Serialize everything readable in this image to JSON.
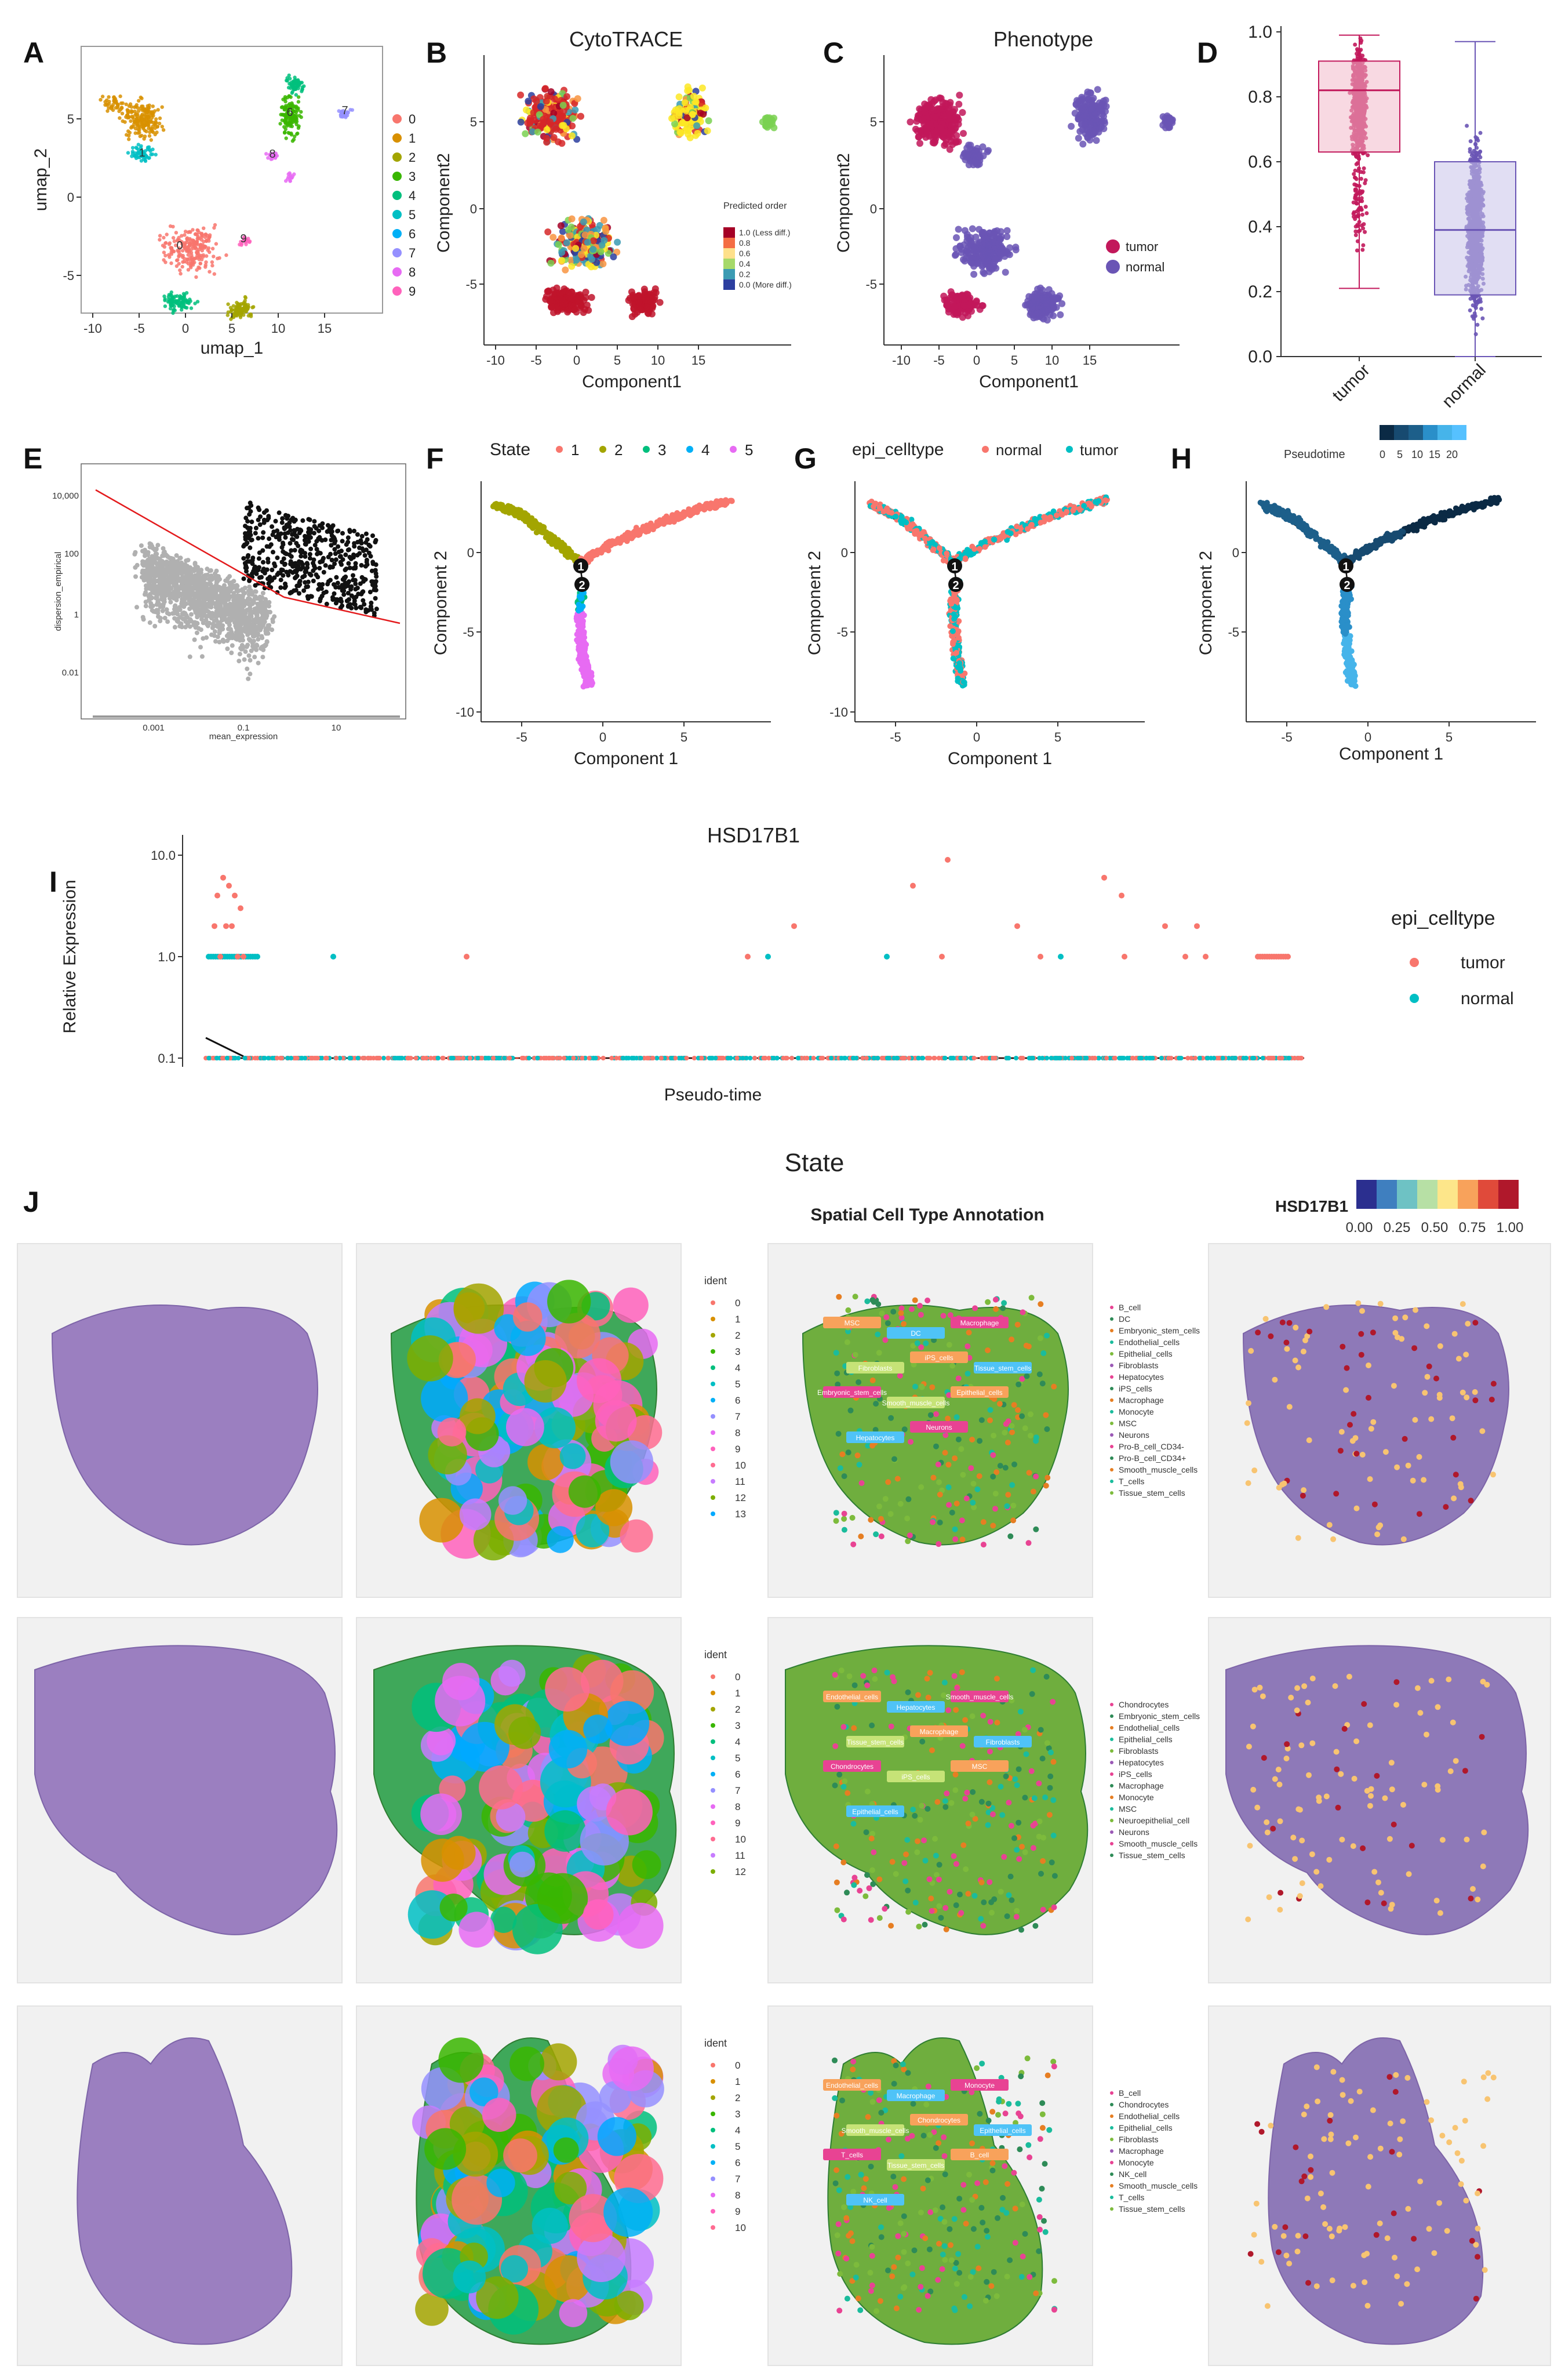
{
  "panel_labels": [
    "A",
    "B",
    "C",
    "D",
    "E",
    "F",
    "G",
    "H",
    "I",
    "J"
  ],
  "colors": {
    "tumor": "#f8766d",
    "normal": "#00bfc4",
    "tumor_box": "#c2185b",
    "normal_box": "#6a55b5",
    "state1": "#f8766d",
    "state2": "#a3a500",
    "state3": "#00bf7d",
    "state4": "#00b0f6",
    "state5": "#e76bf3"
  },
  "chart_data": [
    {
      "panel": "A",
      "type": "scatter",
      "xlabel": "umap_1",
      "ylabel": "umap_2",
      "xticks": [
        "-10",
        "-5",
        "0",
        "5",
        "10",
        "15"
      ],
      "yticks": [
        "5",
        "0",
        "-5"
      ],
      "legend": [
        "0",
        "1",
        "2",
        "3",
        "4",
        "5",
        "6",
        "7",
        "8",
        "9"
      ],
      "cluster_labels": [
        "0",
        "1",
        "2",
        "3",
        "4",
        "5",
        "6",
        "7",
        "8",
        "9"
      ]
    },
    {
      "panel": "B",
      "type": "scatter",
      "title": "CytoTRACE",
      "xlabel": "Component1",
      "ylabel": "Component2",
      "xticks": [
        "-10",
        "-5",
        "0",
        "5",
        "10",
        "15"
      ],
      "yticks": [
        "5",
        "0",
        "-5"
      ],
      "legend_title": "Predicted order",
      "legend": [
        "1.0 (Less diff.)",
        "0.8",
        "0.6",
        "0.4",
        "0.2",
        "0.0 (More diff.)"
      ]
    },
    {
      "panel": "C",
      "type": "scatter",
      "title": "Phenotype",
      "xlabel": "Component1",
      "ylabel": "Component2",
      "xticks": [
        "-10",
        "-5",
        "0",
        "5",
        "10",
        "15"
      ],
      "yticks": [
        "5",
        "0",
        "-5"
      ],
      "legend": [
        "tumor",
        "normal"
      ]
    },
    {
      "panel": "D",
      "type": "box",
      "categories": [
        "tumor",
        "normal"
      ],
      "yticks": [
        "0.0",
        "0.2",
        "0.4",
        "0.6",
        "0.8",
        "1.0"
      ],
      "ylim": [
        0,
        1
      ],
      "boxes": [
        {
          "name": "tumor",
          "q1": 0.63,
          "median": 0.82,
          "q3": 0.91,
          "lo": 0.21,
          "hi": 0.99
        },
        {
          "name": "normal",
          "q1": 0.19,
          "median": 0.39,
          "q3": 0.6,
          "lo": 0.0,
          "hi": 0.97
        }
      ]
    },
    {
      "panel": "E",
      "type": "scatter",
      "xlabel": "mean_expression",
      "ylabel": "dispersion_empirical",
      "xticks": [
        "0.001",
        "0.1",
        "10"
      ],
      "yticks": [
        "10,000",
        "100",
        "1",
        "0.01"
      ]
    },
    {
      "panel": "F",
      "type": "trajectory",
      "legend_title": "State",
      "legend": [
        "1",
        "2",
        "3",
        "4",
        "5"
      ],
      "xlabel": "Component 1",
      "ylabel": "Component 2",
      "xticks": [
        "-5",
        "0",
        "5"
      ],
      "yticks": [
        "0",
        "-5",
        "-10"
      ],
      "nodes": [
        "1",
        "2"
      ]
    },
    {
      "panel": "G",
      "type": "trajectory",
      "legend_title": "epi_celltype",
      "legend": [
        "normal",
        "tumor"
      ],
      "xlabel": "Component 1",
      "ylabel": "Component 2",
      "xticks": [
        "-5",
        "0",
        "5"
      ],
      "yticks": [
        "0",
        "-5",
        "-10"
      ],
      "nodes": [
        "1",
        "2"
      ]
    },
    {
      "panel": "H",
      "type": "trajectory",
      "legend_title": "Pseudotime",
      "legend": [
        "0",
        "5",
        "10",
        "15",
        "20"
      ],
      "xlabel": "Component 1",
      "ylabel": "Component 2",
      "xticks": [
        "-5",
        "0",
        "5"
      ],
      "yticks": [
        "0",
        "-5"
      ],
      "nodes": [
        "1",
        "2"
      ]
    },
    {
      "panel": "I",
      "type": "scatter",
      "title": "HSD17B1",
      "xlabel": "Pseudo-time",
      "ylabel": "Relative Expression",
      "yticks": [
        "10.0",
        "1.0",
        "0.1"
      ],
      "legend_title": "epi_celltype",
      "legend": [
        "tumor",
        "normal"
      ]
    }
  ],
  "panel_j": {
    "title": "State",
    "annotation_title": "Spatial Cell Type Annotation",
    "colorbar_title": "HSD17B1",
    "colorbar_ticks": [
      "0.00",
      "0.25",
      "0.50",
      "0.75",
      "1.00"
    ],
    "ident_title": "ident",
    "rows": [
      {
        "idents": [
          "0",
          "1",
          "2",
          "3",
          "4",
          "5",
          "6",
          "7",
          "8",
          "9",
          "10",
          "11",
          "12",
          "13"
        ],
        "celltypes": [
          "B_cell",
          "DC",
          "Embryonic_stem_cells",
          "Endothelial_cells",
          "Epithelial_cells",
          "Fibroblasts",
          "Hepatocytes",
          "iPS_cells",
          "Macrophage",
          "Monocyte",
          "MSC",
          "Neurons",
          "Pro-B_cell_CD34-",
          "Pro-B_cell_CD34+",
          "Smooth_muscle_cells",
          "T_cells",
          "Tissue_stem_cells"
        ],
        "map_labels": [
          "MSC",
          "DC",
          "Macrophage",
          "Fibroblasts",
          "iPS_cells",
          "Tissue_stem_cells",
          "Embryonic_stem_cells",
          "Smooth_muscle_cells",
          "Epithelial_cells",
          "Hepatocytes",
          "Neurons"
        ]
      },
      {
        "idents": [
          "0",
          "1",
          "2",
          "3",
          "4",
          "5",
          "6",
          "7",
          "8",
          "9",
          "10",
          "11",
          "12"
        ],
        "celltypes": [
          "Chondrocytes",
          "Embryonic_stem_cells",
          "Endothelial_cells",
          "Epithelial_cells",
          "Fibroblasts",
          "Hepatocytes",
          "iPS_cells",
          "Macrophage",
          "Monocyte",
          "MSC",
          "Neuroepithelial_cell",
          "Neurons",
          "Smooth_muscle_cells",
          "Tissue_stem_cells"
        ],
        "map_labels": [
          "Endothelial_cells",
          "Hepatocytes",
          "Smooth_muscle_cells",
          "Tissue_stem_cells",
          "Macrophage",
          "Fibroblasts",
          "Chondrocytes",
          "iPS_cells",
          "MSC",
          "Epithelial_cells"
        ]
      },
      {
        "idents": [
          "0",
          "1",
          "2",
          "3",
          "4",
          "5",
          "6",
          "7",
          "8",
          "9",
          "10"
        ],
        "celltypes": [
          "B_cell",
          "Chondrocytes",
          "Endothelial_cells",
          "Epithelial_cells",
          "Fibroblasts",
          "Macrophage",
          "Monocyte",
          "NK_cell",
          "Smooth_muscle_cells",
          "T_cells",
          "Tissue_stem_cells"
        ],
        "map_labels": [
          "Endothelial_cells",
          "Macrophage",
          "Monocyte",
          "Smooth_muscle_cells",
          "Chondrocytes",
          "Epithelial_cells",
          "T_cells",
          "Tissue_stem_cells",
          "B_cell",
          "NK_cell"
        ]
      }
    ]
  }
}
